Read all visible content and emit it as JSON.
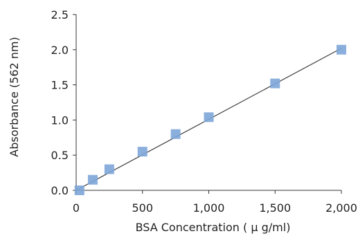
{
  "chart_data": {
    "type": "scatter",
    "xlabel": "BSA Concentration ( μ g/ml)",
    "ylabel": "Absorbance (562 nm)",
    "xlim": [
      0,
      2000
    ],
    "ylim": [
      0,
      2.5
    ],
    "x_ticks": [
      "0",
      "500",
      "1,000",
      "1,500",
      "2,000"
    ],
    "x_tick_values": [
      0,
      500,
      1000,
      1500,
      2000
    ],
    "y_ticks": [
      "0.0",
      "0.5",
      "1.0",
      "1.5",
      "2.0",
      "2.5"
    ],
    "y_tick_values": [
      0,
      0.5,
      1.0,
      1.5,
      2.0,
      2.5
    ],
    "grid": false,
    "marker_color": "#7ea6d8",
    "trendline": {
      "type": "linear",
      "x": [
        0,
        2000
      ],
      "y": [
        0.0,
        2.02
      ],
      "color": "#3a3a3a"
    },
    "series": [
      {
        "x": [
          25,
          125,
          250,
          500,
          750,
          1000,
          1500,
          2000
        ],
        "y": [
          0.0,
          0.15,
          0.3,
          0.55,
          0.8,
          1.04,
          1.52,
          2.0
        ]
      }
    ]
  }
}
